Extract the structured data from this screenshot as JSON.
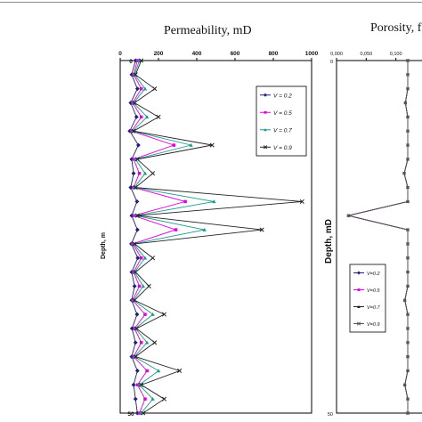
{
  "chart_data": [
    {
      "type": "line",
      "title": "Permeability,  mD",
      "xlabel": "",
      "ylabel": "Depth, m",
      "xlim": [
        0,
        1000
      ],
      "ylim": [
        0,
        50
      ],
      "y_inverted": true,
      "x_axis_position": "top",
      "x_ticks": [
        "0",
        "200",
        "400",
        "600",
        "800",
        "1000"
      ],
      "y_ticks": [
        "0",
        "50"
      ],
      "grid": false,
      "legend_position": "right",
      "depth": [
        0,
        2,
        4,
        6,
        8,
        10,
        12,
        14,
        16,
        18,
        20,
        22,
        24,
        26,
        28,
        30,
        32,
        34,
        36,
        38,
        40,
        42,
        44,
        46,
        48,
        50
      ],
      "series": [
        {
          "name": "V = 0.2",
          "color": "#1f1f7a",
          "marker": "diamond",
          "values": [
            80,
            60,
            90,
            55,
            85,
            50,
            95,
            60,
            70,
            55,
            88,
            60,
            90,
            58,
            92,
            60,
            75,
            60,
            88,
            62,
            80,
            60,
            90,
            70,
            80,
            90
          ]
        },
        {
          "name": "V = 0.5",
          "color": "#e000e0",
          "marker": "square",
          "values": [
            90,
            70,
            110,
            65,
            110,
            60,
            280,
            70,
            100,
            70,
            340,
            70,
            290,
            65,
            110,
            70,
            100,
            65,
            130,
            75,
            110,
            70,
            140,
            90,
            130,
            100
          ]
        },
        {
          "name": "V = 0.7",
          "color": "#1a9a8a",
          "marker": "triangle",
          "values": [
            100,
            75,
            130,
            70,
            140,
            65,
            370,
            80,
            130,
            75,
            490,
            80,
            440,
            70,
            130,
            75,
            120,
            70,
            170,
            80,
            140,
            75,
            200,
            100,
            170,
            110
          ]
        },
        {
          "name": "V = 0.9",
          "color": "#222222",
          "marker": "x",
          "values": [
            110,
            80,
            180,
            75,
            200,
            70,
            480,
            90,
            170,
            80,
            950,
            90,
            740,
            75,
            170,
            80,
            150,
            75,
            230,
            85,
            180,
            80,
            310,
            110,
            230,
            120
          ]
        }
      ]
    },
    {
      "type": "line",
      "title": "Porosity,  f",
      "xlabel": "",
      "ylabel": "Depth,  mD",
      "xlim": [
        0,
        0.15
      ],
      "ylim": [
        0,
        50
      ],
      "y_inverted": true,
      "x_axis_position": "top",
      "x_ticks": [
        "0,000",
        "0,050",
        "0,100"
      ],
      "y_ticks": [
        "0",
        "50"
      ],
      "grid": false,
      "legend_position": "left",
      "depth": [
        0,
        2,
        4,
        6,
        8,
        10,
        12,
        14,
        16,
        18,
        20,
        22,
        24,
        26,
        28,
        30,
        32,
        34,
        36,
        38,
        40,
        42,
        44,
        46,
        48,
        50
      ],
      "series": [
        {
          "name": "V=0.2",
          "color": "#1f1f7a",
          "marker": "diamond",
          "values": [
            0.12,
            0.12,
            0.12,
            0.116,
            0.12,
            0.12,
            0.12,
            0.12,
            0.114,
            0.12,
            0.12,
            0.02,
            0.12,
            0.12,
            0.12,
            0.12,
            0.12,
            0.115,
            0.12,
            0.12,
            0.12,
            0.12,
            0.12,
            0.115,
            0.12,
            0.12
          ]
        },
        {
          "name": "V=0.5",
          "color": "#e000e0",
          "marker": "square",
          "values": [
            0.12,
            0.12,
            0.12,
            0.116,
            0.12,
            0.12,
            0.12,
            0.12,
            0.114,
            0.12,
            0.12,
            0.02,
            0.12,
            0.12,
            0.12,
            0.12,
            0.12,
            0.115,
            0.12,
            0.12,
            0.12,
            0.12,
            0.12,
            0.115,
            0.12,
            0.12
          ]
        },
        {
          "name": "V=0.7",
          "color": "#222222",
          "marker": "triangle",
          "values": [
            0.12,
            0.12,
            0.12,
            0.116,
            0.12,
            0.12,
            0.12,
            0.12,
            0.114,
            0.12,
            0.12,
            0.02,
            0.12,
            0.12,
            0.12,
            0.12,
            0.12,
            0.115,
            0.12,
            0.12,
            0.12,
            0.12,
            0.12,
            0.115,
            0.12,
            0.12
          ]
        },
        {
          "name": "V=0.9",
          "color": "#555555",
          "marker": "x",
          "values": [
            0.12,
            0.12,
            0.12,
            0.116,
            0.12,
            0.12,
            0.12,
            0.12,
            0.114,
            0.12,
            0.12,
            0.02,
            0.12,
            0.12,
            0.12,
            0.12,
            0.12,
            0.115,
            0.12,
            0.12,
            0.12,
            0.12,
            0.12,
            0.115,
            0.12,
            0.12
          ]
        }
      ]
    }
  ]
}
